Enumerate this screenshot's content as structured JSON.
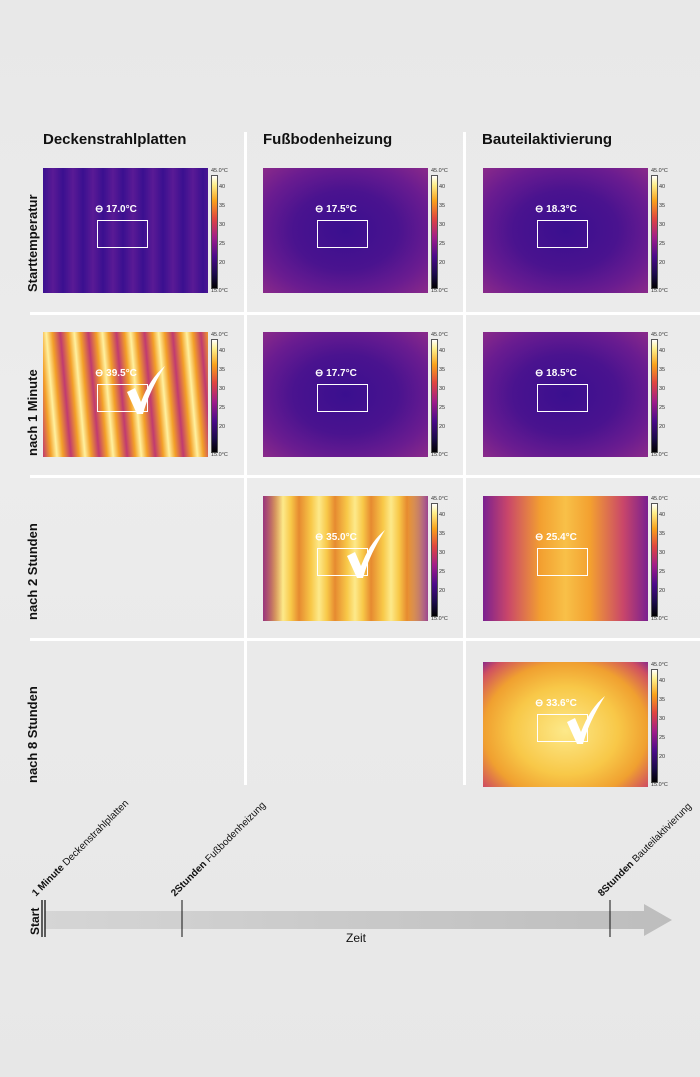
{
  "columns": [
    "Deckenstrahlplatten",
    "Fußbodenheizung",
    "Bauteilaktivierung"
  ],
  "rows": [
    "Starttemperatur",
    "nach 1 Minute",
    "nach 2 Stunden",
    "nach 8 Stunden"
  ],
  "scale": {
    "max": "45.0°C",
    "min": "15.0°C",
    "ticks": [
      "40",
      "35",
      "30",
      "25",
      "20"
    ]
  },
  "cells": [
    {
      "key": "r0c0",
      "temp": "17.0°C",
      "check": false,
      "palette": "coldStripes"
    },
    {
      "key": "r0c1",
      "temp": "17.5°C",
      "check": false,
      "palette": "cold"
    },
    {
      "key": "r0c2",
      "temp": "18.3°C",
      "check": false,
      "palette": "cold"
    },
    {
      "key": "r1c0",
      "temp": "39.5°C",
      "check": true,
      "palette": "hotStripes"
    },
    {
      "key": "r1c1",
      "temp": "17.7°C",
      "check": false,
      "palette": "cold"
    },
    {
      "key": "r1c2",
      "temp": "18.5°C",
      "check": false,
      "palette": "cold"
    },
    {
      "key": "r2c1",
      "temp": "35.0°C",
      "check": true,
      "palette": "warmStripes"
    },
    {
      "key": "r2c2",
      "temp": "25.4°C",
      "check": false,
      "palette": "warm"
    },
    {
      "key": "r3c2",
      "temp": "33.6°C",
      "check": true,
      "palette": "hot"
    }
  ],
  "timeline": {
    "axis_label": "Zeit",
    "start": "Start",
    "markers": [
      {
        "time": "1 Minute",
        "label": "Deckenstrahlplatten"
      },
      {
        "time": "2Stunden",
        "label": "Fußbodenheizung"
      },
      {
        "time": "8Stunden",
        "label": "Bauteilaktivierung"
      }
    ]
  }
}
